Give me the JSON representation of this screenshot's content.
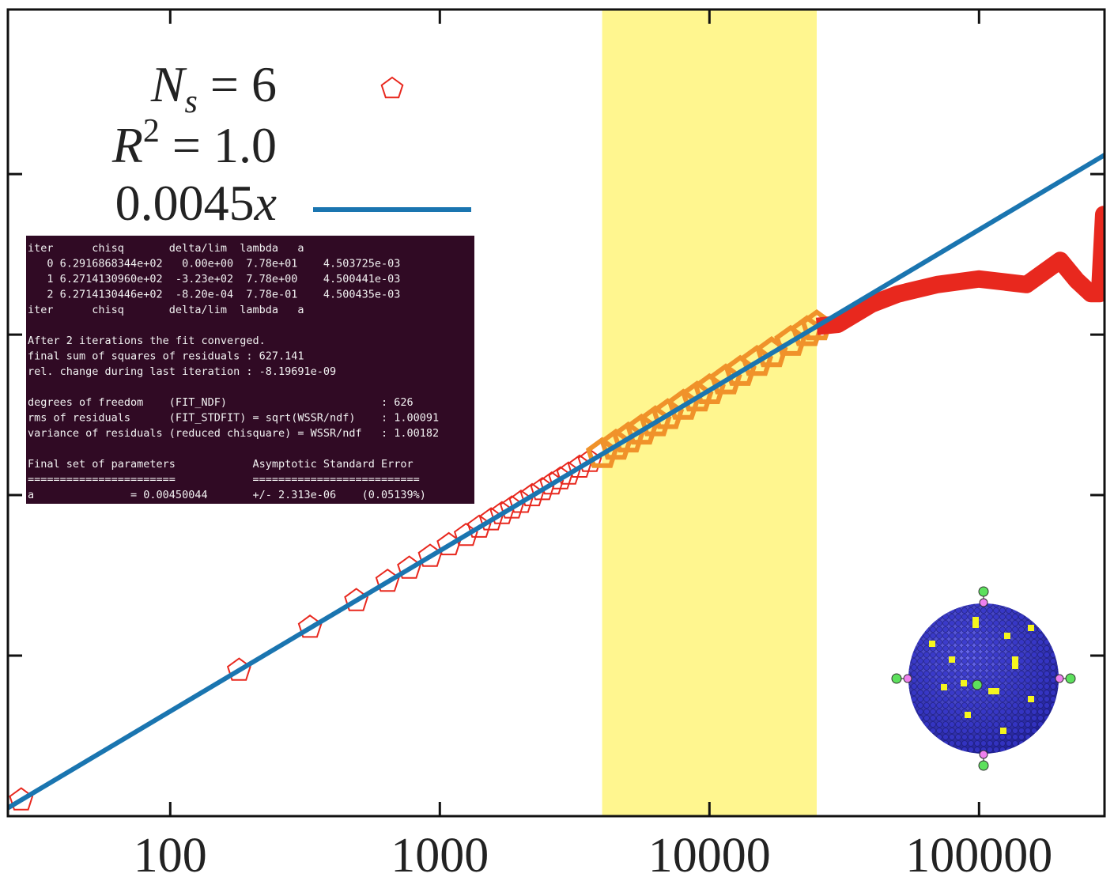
{
  "chart_data": {
    "type": "scatter",
    "xscale": "log",
    "yscale": "log",
    "xlim": [
      25,
      292000
    ],
    "ylim": [
      0.1,
      10600
    ],
    "xticks": [
      100,
      1000,
      10000,
      100000
    ],
    "yticks": [
      1,
      10,
      100,
      1000
    ],
    "highlight": [
      4000,
      25000
    ],
    "highlight_color": "#fff68f",
    "legend": [
      {
        "main": "N",
        "sub": "s",
        "rest": " = 6"
      },
      {
        "main": "R",
        "sup": "2",
        "rest": " = 1.0"
      },
      {
        "main": "0.0045",
        "italic": "x"
      }
    ],
    "fit": {
      "slope": 0.0045,
      "color": "#1a75b0"
    },
    "series": [
      {
        "color": "#e8281e",
        "band_color": "#f0922a",
        "x": [
          28,
          180,
          330,
          490,
          640,
          770,
          920,
          1080,
          1250,
          1400,
          1550,
          1700,
          1850,
          2000,
          2200,
          2400,
          2600,
          2800,
          3000,
          3300,
          3600,
          4000,
          4500,
          5000,
          5600,
          6300,
          7000,
          8000,
          9000,
          10000,
          11500,
          13000,
          15000,
          17000,
          20000,
          23000,
          25000
        ],
        "values": [
          0.126,
          0.81,
          1.5,
          2.2,
          2.9,
          3.5,
          4.15,
          4.9,
          5.6,
          6.3,
          7.0,
          7.65,
          8.3,
          9.0,
          9.9,
          10.8,
          11.7,
          12.6,
          13.5,
          14.9,
          16.2,
          18.0,
          20.3,
          22.5,
          25.2,
          28.4,
          31.5,
          36.0,
          40.5,
          45.0,
          51.8,
          58.5,
          67.5,
          76.5,
          90.0,
          103.5,
          112.5
        ]
      },
      {
        "color": "#e8281e",
        "x": [
          25000,
          30000,
          40000,
          50000,
          70000,
          100000,
          150000,
          200000,
          230000,
          260000,
          280000,
          290000,
          292000
        ],
        "values": [
          112.5,
          116,
          155,
          179,
          205,
          222,
          205,
          290,
          218,
          180,
          180,
          560,
          540
        ]
      }
    ]
  },
  "terminal": [
    "iter      chisq       delta/lim  lambda   a",
    "   0 6.2916868344e+02   0.00e+00  7.78e+01    4.503725e-03",
    "   1 6.2714130960e+02  -3.23e+02  7.78e+00    4.500441e-03",
    "   2 6.2714130446e+02  -8.20e-04  7.78e-01    4.500435e-03",
    "iter      chisq       delta/lim  lambda   a",
    "",
    "After 2 iterations the fit converged.",
    "final sum of squares of residuals : 627.141",
    "rel. change during last iteration : -8.19691e-09",
    "",
    "degrees of freedom    (FIT_NDF)                        : 626",
    "rms of residuals      (FIT_STDFIT) = sqrt(WSSR/ndf)    : 1.00091",
    "variance of residuals (reduced chisquare) = WSSR/ndf   : 1.00182",
    "",
    "Final set of parameters            Asymptotic Standard Error",
    "=======================            ==========================",
    "a               = 0.00450044       +/- 2.313e-06    (0.05139%)"
  ]
}
